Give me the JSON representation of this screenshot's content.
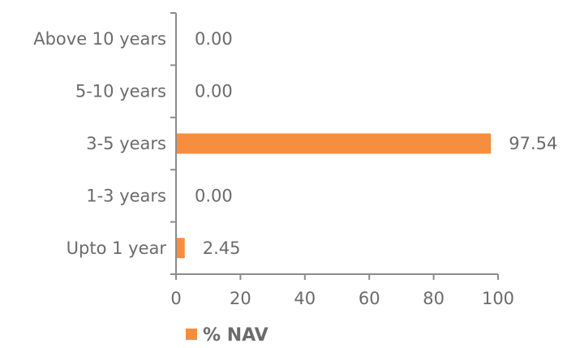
{
  "chart_data": {
    "type": "bar",
    "orientation": "horizontal",
    "categories": [
      "Above 10 years",
      "5-10 years",
      "3-5 years",
      "1-3 years",
      "Upto 1 year"
    ],
    "series": [
      {
        "name": "%  NAV",
        "values": [
          0.0,
          0.0,
          97.54,
          0.0,
          2.45
        ],
        "value_labels": [
          "0.00",
          "0.00",
          "97.54",
          "0.00",
          "2.45"
        ],
        "color": "#F58E3E"
      }
    ],
    "xlim": [
      0,
      100
    ],
    "xticks": [
      0,
      20,
      40,
      60,
      80,
      100
    ],
    "title": "",
    "xlabel": "",
    "ylabel": "",
    "grid": false,
    "legend": "bottom-left",
    "axis_color": "#8c8c8c",
    "text_color": "#6b6b6b"
  }
}
